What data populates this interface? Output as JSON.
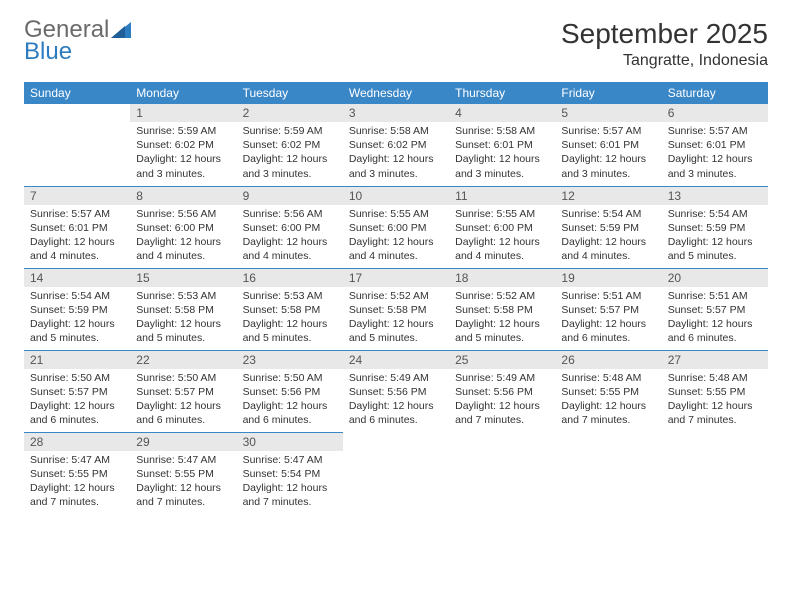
{
  "logo": {
    "word1": "General",
    "word2": "Blue"
  },
  "title": "September 2025",
  "location": "Tangratte, Indonesia",
  "colors": {
    "header_bg": "#3a87c8",
    "header_text": "#ffffff",
    "daynum_bg": "#e8e8e8",
    "daynum_text": "#555555",
    "body_text": "#333333",
    "rule": "#3a87c8",
    "logo_gray": "#6b6b6b",
    "logo_blue": "#2e7cc0",
    "page_bg": "#ffffff"
  },
  "fonts": {
    "title_pt": 28,
    "location_pt": 16,
    "dayheader_pt": 12,
    "daynum_pt": 12,
    "body_pt": 10.5
  },
  "day_headers": [
    "Sunday",
    "Monday",
    "Tuesday",
    "Wednesday",
    "Thursday",
    "Friday",
    "Saturday"
  ],
  "labels": {
    "sunrise": "Sunrise:",
    "sunset": "Sunset:",
    "daylight": "Daylight:"
  },
  "weeks": [
    [
      null,
      {
        "n": "1",
        "sunrise": "5:59 AM",
        "sunset": "6:02 PM",
        "daylight": "12 hours and 3 minutes."
      },
      {
        "n": "2",
        "sunrise": "5:59 AM",
        "sunset": "6:02 PM",
        "daylight": "12 hours and 3 minutes."
      },
      {
        "n": "3",
        "sunrise": "5:58 AM",
        "sunset": "6:02 PM",
        "daylight": "12 hours and 3 minutes."
      },
      {
        "n": "4",
        "sunrise": "5:58 AM",
        "sunset": "6:01 PM",
        "daylight": "12 hours and 3 minutes."
      },
      {
        "n": "5",
        "sunrise": "5:57 AM",
        "sunset": "6:01 PM",
        "daylight": "12 hours and 3 minutes."
      },
      {
        "n": "6",
        "sunrise": "5:57 AM",
        "sunset": "6:01 PM",
        "daylight": "12 hours and 3 minutes."
      }
    ],
    [
      {
        "n": "7",
        "sunrise": "5:57 AM",
        "sunset": "6:01 PM",
        "daylight": "12 hours and 4 minutes."
      },
      {
        "n": "8",
        "sunrise": "5:56 AM",
        "sunset": "6:00 PM",
        "daylight": "12 hours and 4 minutes."
      },
      {
        "n": "9",
        "sunrise": "5:56 AM",
        "sunset": "6:00 PM",
        "daylight": "12 hours and 4 minutes."
      },
      {
        "n": "10",
        "sunrise": "5:55 AM",
        "sunset": "6:00 PM",
        "daylight": "12 hours and 4 minutes."
      },
      {
        "n": "11",
        "sunrise": "5:55 AM",
        "sunset": "6:00 PM",
        "daylight": "12 hours and 4 minutes."
      },
      {
        "n": "12",
        "sunrise": "5:54 AM",
        "sunset": "5:59 PM",
        "daylight": "12 hours and 4 minutes."
      },
      {
        "n": "13",
        "sunrise": "5:54 AM",
        "sunset": "5:59 PM",
        "daylight": "12 hours and 5 minutes."
      }
    ],
    [
      {
        "n": "14",
        "sunrise": "5:54 AM",
        "sunset": "5:59 PM",
        "daylight": "12 hours and 5 minutes."
      },
      {
        "n": "15",
        "sunrise": "5:53 AM",
        "sunset": "5:58 PM",
        "daylight": "12 hours and 5 minutes."
      },
      {
        "n": "16",
        "sunrise": "5:53 AM",
        "sunset": "5:58 PM",
        "daylight": "12 hours and 5 minutes."
      },
      {
        "n": "17",
        "sunrise": "5:52 AM",
        "sunset": "5:58 PM",
        "daylight": "12 hours and 5 minutes."
      },
      {
        "n": "18",
        "sunrise": "5:52 AM",
        "sunset": "5:58 PM",
        "daylight": "12 hours and 5 minutes."
      },
      {
        "n": "19",
        "sunrise": "5:51 AM",
        "sunset": "5:57 PM",
        "daylight": "12 hours and 6 minutes."
      },
      {
        "n": "20",
        "sunrise": "5:51 AM",
        "sunset": "5:57 PM",
        "daylight": "12 hours and 6 minutes."
      }
    ],
    [
      {
        "n": "21",
        "sunrise": "5:50 AM",
        "sunset": "5:57 PM",
        "daylight": "12 hours and 6 minutes."
      },
      {
        "n": "22",
        "sunrise": "5:50 AM",
        "sunset": "5:57 PM",
        "daylight": "12 hours and 6 minutes."
      },
      {
        "n": "23",
        "sunrise": "5:50 AM",
        "sunset": "5:56 PM",
        "daylight": "12 hours and 6 minutes."
      },
      {
        "n": "24",
        "sunrise": "5:49 AM",
        "sunset": "5:56 PM",
        "daylight": "12 hours and 6 minutes."
      },
      {
        "n": "25",
        "sunrise": "5:49 AM",
        "sunset": "5:56 PM",
        "daylight": "12 hours and 7 minutes."
      },
      {
        "n": "26",
        "sunrise": "5:48 AM",
        "sunset": "5:55 PM",
        "daylight": "12 hours and 7 minutes."
      },
      {
        "n": "27",
        "sunrise": "5:48 AM",
        "sunset": "5:55 PM",
        "daylight": "12 hours and 7 minutes."
      }
    ],
    [
      {
        "n": "28",
        "sunrise": "5:47 AM",
        "sunset": "5:55 PM",
        "daylight": "12 hours and 7 minutes."
      },
      {
        "n": "29",
        "sunrise": "5:47 AM",
        "sunset": "5:55 PM",
        "daylight": "12 hours and 7 minutes."
      },
      {
        "n": "30",
        "sunrise": "5:47 AM",
        "sunset": "5:54 PM",
        "daylight": "12 hours and 7 minutes."
      },
      null,
      null,
      null,
      null
    ]
  ]
}
